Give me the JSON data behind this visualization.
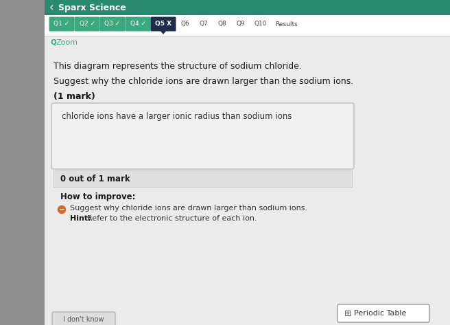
{
  "bg_left_color": "#a0a0a0",
  "bg_main_color": "#d8d8d8",
  "header_color": "#2a8a70",
  "header_text": "Sparx Science",
  "header_text_color": "#ffffff",
  "nav_bar_bg": "#ffffff",
  "nav_buttons": [
    {
      "label": "Q1 ✓",
      "color": "#3aaa7e",
      "text_color": "#ffffff",
      "active": false
    },
    {
      "label": "Q2 ✓",
      "color": "#3aaa7e",
      "text_color": "#ffffff",
      "active": false
    },
    {
      "label": "Q3 ✓",
      "color": "#3aaa7e",
      "text_color": "#ffffff",
      "active": false
    },
    {
      "label": "Q4 ✓",
      "color": "#3aaa7e",
      "text_color": "#ffffff",
      "active": false
    },
    {
      "label": "Q5 X",
      "color": "#1e2d4e",
      "text_color": "#ffffff",
      "active": true
    },
    {
      "label": "Q6",
      "color": "none",
      "text_color": "#444444",
      "active": false
    },
    {
      "label": "Q7",
      "color": "none",
      "text_color": "#444444",
      "active": false
    },
    {
      "label": "Q8",
      "color": "none",
      "text_color": "#444444",
      "active": false
    },
    {
      "label": "Q9",
      "color": "none",
      "text_color": "#444444",
      "active": false
    },
    {
      "label": "Q10",
      "color": "none",
      "text_color": "#444444",
      "active": false
    },
    {
      "label": "Results",
      "color": "none",
      "text_color": "#444444",
      "active": false
    }
  ],
  "zoom_text": "Zoom",
  "zoom_color": "#3aaa7e",
  "content_bg": "#e8e8e8",
  "question1": "This diagram represents the structure of sodium chloride.",
  "question2": "Suggest why the chloride ions are drawn larger than the sodium ions.",
  "mark_text": "(1 mark)",
  "answer_box_bg": "#f0f0f0",
  "answer_box_border": "#bbbbbb",
  "answer_text": "chloride ions have a larger ionic radius than sodium ions",
  "score_bar_bg": "#e0e0e0",
  "score_text": "0 out of 1 mark",
  "improve_title": "How to improve:",
  "bullet_color": "#d96820",
  "improve_line": "Suggest why chloride ions are drawn larger than sodium ions.",
  "hint_line": "Hint: Refer to the electronic structure of each ion.",
  "hint_bold": "Hint:",
  "periodic_label": "Periodic Table",
  "dont_know_label": "I don't know"
}
